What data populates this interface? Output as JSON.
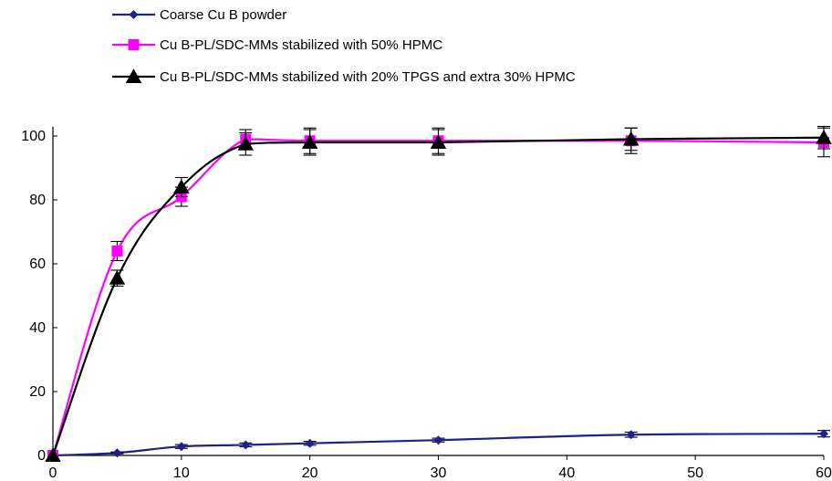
{
  "chart_data": {
    "type": "line",
    "x_ticks": [
      0,
      10,
      20,
      30,
      40,
      50,
      60
    ],
    "y_ticks": [
      0,
      20,
      40,
      60,
      80,
      100
    ],
    "xlim": [
      0,
      60
    ],
    "ylim": [
      0,
      100
    ],
    "grid": false,
    "legend_position": "top-left",
    "series": [
      {
        "name": "Coarse Cu B powder",
        "color": "#1f1f8f",
        "marker": "diamond",
        "x": [
          0,
          5,
          10,
          15,
          20,
          30,
          45,
          60
        ],
        "y": [
          0,
          0.8,
          2.8,
          3.3,
          3.8,
          4.8,
          6.5,
          6.8
        ],
        "error": [
          0,
          0.3,
          0.6,
          0.6,
          0.6,
          0.6,
          0.8,
          1.0
        ]
      },
      {
        "name": "Cu B-PL/SDC-MMs stabilized with 50% HPMC",
        "color": "#ff00ff",
        "marker": "square",
        "x": [
          0,
          5,
          10,
          15,
          20,
          30,
          45,
          60
        ],
        "y": [
          0,
          64,
          81,
          99,
          98.5,
          98.5,
          98.5,
          98
        ],
        "error": [
          0,
          3,
          3,
          3,
          4,
          4,
          4,
          4.5
        ]
      },
      {
        "name": "Cu B-PL/SDC-MMs stabilized with 20% TPGS and extra 30% HPMC",
        "color": "#000000",
        "marker": "triangle",
        "x": [
          0,
          5,
          10,
          15,
          20,
          30,
          45,
          60
        ],
        "y": [
          0,
          55.5,
          84,
          97.5,
          98,
          98,
          99,
          99.5
        ],
        "error": [
          0,
          2.5,
          3,
          3.5,
          4,
          4,
          3.5,
          3.5
        ]
      }
    ]
  }
}
